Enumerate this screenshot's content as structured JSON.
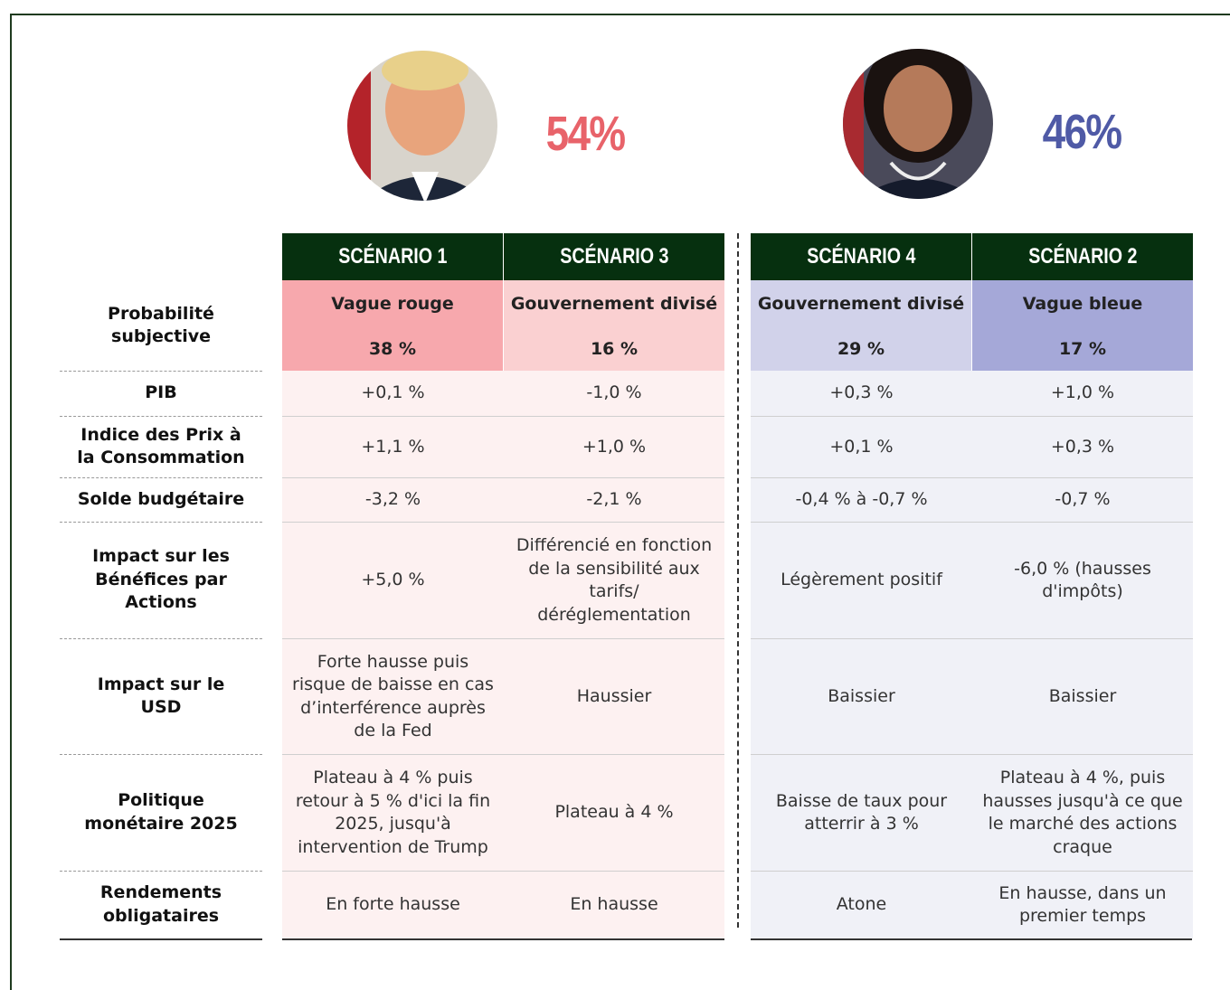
{
  "candidates": [
    {
      "percent": "54%"
    },
    {
      "percent": "46%"
    }
  ],
  "table": {
    "probability_label": "Probabilité subjective",
    "columns": [
      {
        "scenario": "SCÉNARIO 1",
        "name": "Vague rouge",
        "probability": "38 %"
      },
      {
        "scenario": "SCÉNARIO 3",
        "name": "Gouvernement divisé",
        "probability": "16 %"
      },
      {
        "scenario": "SCÉNARIO 4",
        "name": "Gouvernement divisé",
        "probability": "29 %"
      },
      {
        "scenario": "SCÉNARIO 2",
        "name": "Vague bleue",
        "probability": "17 %"
      }
    ],
    "rows": [
      {
        "label": "PIB",
        "cells": [
          "+0,1 %",
          "-1,0 %",
          "+0,3 %",
          "+1,0 %"
        ]
      },
      {
        "label": "Indice des Prix à la Consommation",
        "cells": [
          "+1,1 %",
          "+1,0 %",
          "+0,1 %",
          "+0,3 %"
        ]
      },
      {
        "label": "Solde budgétaire",
        "cells": [
          "-3,2 %",
          "-2,1 %",
          "-0,4 % à -0,7 %",
          "-0,7 %"
        ]
      },
      {
        "label": "Impact sur les Bénéfices par Actions",
        "cells": [
          "+5,0 %",
          "Différencié en fonction de la sensibilité aux tarifs/ déréglementation",
          "Légèrement positif",
          "-6,0 % (hausses d'impôts)"
        ]
      },
      {
        "label": "Impact sur le USD",
        "cells": [
          "Forte hausse puis risque de baisse en cas d’interférence auprès de la Fed",
          "Haussier",
          "Baissier",
          "Baissier"
        ]
      },
      {
        "label": "Politique monétaire 2025",
        "cells": [
          "Plateau à 4 % puis retour à 5 % d'ici la fin 2025, jusqu'à intervention de Trump",
          "Plateau à 4 %",
          "Baisse de taux pour atterrir à 3 %",
          "Plateau à 4 %, puis hausses jusqu'à ce que le marché des actions craque"
        ]
      },
      {
        "label": "Rendements obligataires",
        "cells": [
          "En forte hausse",
          "En hausse",
          "Atone",
          "En hausse, dans un premier temps"
        ]
      }
    ]
  }
}
